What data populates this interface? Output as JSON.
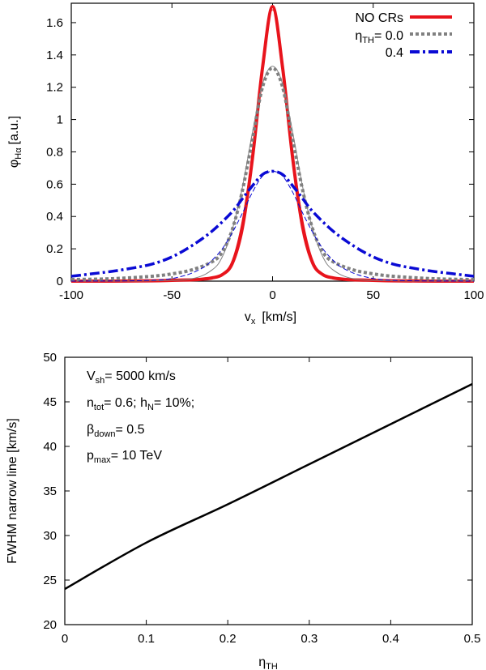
{
  "chart_data": [
    {
      "type": "line",
      "xlabel_main": "v",
      "xlabel_sub": "x",
      "xlabel_unit": "[km/s]",
      "ylabel_main": "φ",
      "ylabel_sub": "Hα",
      "ylabel_unit": "[a.u.]",
      "xlim": [
        -100,
        100
      ],
      "ylim": [
        0,
        1.72
      ],
      "xticks": [
        -100,
        -50,
        0,
        50,
        100
      ],
      "yticks": [
        0,
        0.2,
        0.4,
        0.6,
        0.8,
        1,
        1.2,
        1.4,
        1.6
      ],
      "grid": false,
      "legend_position": "top-right",
      "legend": [
        {
          "main": "NO CRs",
          "sub": "",
          "after": ""
        },
        {
          "main": "η",
          "sub": "TH",
          "after": "= 0.0"
        },
        {
          "main": "",
          "sub": "",
          "after": "0.4"
        }
      ],
      "series": [
        {
          "name": "NO CRs",
          "color": "#e8141c",
          "style": "solid",
          "x": [
            -100,
            -80,
            -60,
            -50,
            -40,
            -35,
            -30,
            -25,
            -20,
            -15,
            -10,
            -5,
            0,
            5,
            10,
            15,
            20,
            25,
            30,
            35,
            40,
            50,
            60,
            80,
            100
          ],
          "y": [
            0.0,
            0.0,
            0.002,
            0.005,
            0.008,
            0.012,
            0.02,
            0.04,
            0.11,
            0.33,
            0.76,
            1.32,
            1.7,
            1.32,
            0.76,
            0.33,
            0.11,
            0.04,
            0.02,
            0.012,
            0.008,
            0.005,
            0.002,
            0.0,
            0.0
          ]
        },
        {
          "name": "NO CRs (thin)",
          "color": "#e8141c",
          "style": "thin",
          "x": [
            -100,
            -60,
            -40,
            -30,
            -25,
            -20,
            -15,
            -10,
            -5,
            0,
            5,
            10,
            15,
            20,
            25,
            30,
            40,
            60,
            100
          ],
          "y": [
            0.0,
            0.0,
            0.003,
            0.015,
            0.04,
            0.13,
            0.38,
            0.8,
            1.33,
            1.68,
            1.33,
            0.8,
            0.38,
            0.13,
            0.04,
            0.015,
            0.003,
            0.0,
            0.0
          ]
        },
        {
          "name": "η_TH= 0.0",
          "color": "#808080",
          "style": "dotted",
          "x": [
            -100,
            -80,
            -60,
            -50,
            -40,
            -30,
            -25,
            -20,
            -15,
            -10,
            -5,
            0,
            5,
            10,
            15,
            20,
            25,
            30,
            40,
            50,
            60,
            80,
            100
          ],
          "y": [
            0.01,
            0.015,
            0.03,
            0.045,
            0.07,
            0.12,
            0.18,
            0.32,
            0.56,
            0.88,
            1.2,
            1.32,
            1.2,
            0.88,
            0.56,
            0.32,
            0.18,
            0.12,
            0.07,
            0.045,
            0.03,
            0.015,
            0.01
          ]
        },
        {
          "name": "η_TH= 0.0 (thin)",
          "color": "#808080",
          "style": "thin",
          "x": [
            -100,
            -60,
            -40,
            -30,
            -25,
            -20,
            -15,
            -10,
            -5,
            0,
            5,
            10,
            15,
            20,
            25,
            30,
            40,
            60,
            100
          ],
          "y": [
            0.0,
            0.002,
            0.015,
            0.07,
            0.15,
            0.32,
            0.58,
            0.92,
            1.22,
            1.33,
            1.22,
            0.92,
            0.58,
            0.32,
            0.15,
            0.07,
            0.015,
            0.002,
            0.0
          ]
        },
        {
          "name": "0.4",
          "color": "#0a0ad4",
          "style": "dashdot",
          "x": [
            -100,
            -90,
            -80,
            -70,
            -60,
            -50,
            -40,
            -30,
            -20,
            -15,
            -10,
            -5,
            0,
            5,
            10,
            15,
            20,
            30,
            40,
            50,
            60,
            70,
            80,
            90,
            100
          ],
          "y": [
            0.03,
            0.045,
            0.06,
            0.08,
            0.105,
            0.15,
            0.22,
            0.31,
            0.43,
            0.51,
            0.59,
            0.66,
            0.68,
            0.66,
            0.59,
            0.51,
            0.43,
            0.31,
            0.22,
            0.15,
            0.105,
            0.08,
            0.06,
            0.045,
            0.03
          ]
        },
        {
          "name": "0.4 (thin)",
          "color": "#0a0ad4",
          "style": "thindash",
          "x": [
            -100,
            -60,
            -45,
            -35,
            -30,
            -25,
            -20,
            -15,
            -10,
            -5,
            0,
            5,
            10,
            15,
            20,
            25,
            30,
            35,
            45,
            60,
            100
          ],
          "y": [
            0.0,
            0.005,
            0.03,
            0.08,
            0.13,
            0.2,
            0.3,
            0.42,
            0.55,
            0.65,
            0.68,
            0.65,
            0.55,
            0.42,
            0.3,
            0.2,
            0.13,
            0.08,
            0.03,
            0.005,
            0.0
          ]
        }
      ]
    },
    {
      "type": "line",
      "xlabel_main": "η",
      "xlabel_sub": "TH",
      "ylabel": "FWHM narrow line [km/s]",
      "xlim": [
        0,
        0.5
      ],
      "ylim": [
        20,
        50
      ],
      "xticks": [
        0,
        0.1,
        0.2,
        0.3,
        0.4,
        0.5
      ],
      "yticks": [
        20,
        25,
        30,
        35,
        40,
        45,
        50
      ],
      "grid": false,
      "annotations": [
        {
          "main": "V",
          "sub": "sh",
          "rest": "= 5000 km/s"
        },
        {
          "main": "n",
          "sub": "tot",
          "rest": "= 0.6; h",
          "sub2": "N",
          "rest2": "= 10%;"
        },
        {
          "main": "β",
          "sub": "down",
          "rest": "= 0.5"
        },
        {
          "main": "p",
          "sub": "max",
          "rest": "= 10 TeV"
        }
      ],
      "series": [
        {
          "color": "#000000",
          "x": [
            0,
            0.1,
            0.2,
            0.3,
            0.4,
            0.5
          ],
          "y": [
            24.0,
            29.2,
            33.5,
            38.0,
            42.5,
            47.0
          ]
        }
      ]
    }
  ]
}
